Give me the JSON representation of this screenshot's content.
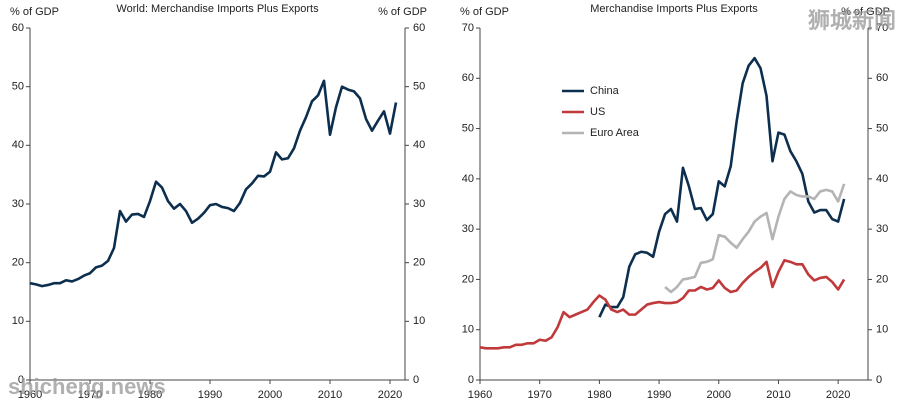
{
  "chart_data": [
    {
      "type": "line",
      "title": "World: Merchandise Imports Plus Exports",
      "ylabel": "% of GDP",
      "y2label": "% of GDP",
      "x": [
        1960,
        1961,
        1962,
        1963,
        1964,
        1965,
        1966,
        1967,
        1968,
        1969,
        1970,
        1971,
        1972,
        1973,
        1974,
        1975,
        1976,
        1977,
        1978,
        1979,
        1980,
        1981,
        1982,
        1983,
        1984,
        1985,
        1986,
        1987,
        1988,
        1989,
        1990,
        1991,
        1992,
        1993,
        1994,
        1995,
        1996,
        1997,
        1998,
        1999,
        2000,
        2001,
        2002,
        2003,
        2004,
        2005,
        2006,
        2007,
        2008,
        2009,
        2010,
        2011,
        2012,
        2013,
        2014,
        2015,
        2016,
        2017,
        2018,
        2019,
        2020,
        2021
      ],
      "values": [
        16.5,
        16.3,
        16.0,
        16.2,
        16.5,
        16.5,
        17.0,
        16.8,
        17.2,
        17.8,
        18.2,
        19.2,
        19.5,
        20.3,
        22.5,
        28.8,
        27.0,
        28.2,
        28.3,
        27.8,
        30.5,
        33.8,
        32.8,
        30.5,
        29.2,
        30.0,
        28.8,
        26.8,
        27.5,
        28.5,
        29.8,
        30.0,
        29.5,
        29.3,
        28.8,
        30.2,
        32.5,
        33.5,
        34.8,
        34.7,
        35.5,
        38.8,
        37.6,
        37.8,
        39.5,
        42.5,
        44.8,
        47.5,
        48.5,
        51.0,
        41.8,
        46.5,
        50.0,
        49.5,
        49.2,
        48.0,
        44.5,
        42.5,
        44.2,
        45.8,
        42.0,
        47.3
      ],
      "color": "#0d2f4f",
      "xlim": [
        1960,
        2022.5
      ],
      "xticks": [
        1960,
        1970,
        1980,
        1990,
        2000,
        2010,
        2020
      ],
      "ylim": [
        0,
        60
      ],
      "yticks": [
        0,
        10,
        20,
        30,
        40,
        50,
        60
      ],
      "y2lim": [
        0,
        60
      ],
      "y2ticks": [
        0,
        10,
        20,
        30,
        40,
        50,
        60
      ]
    },
    {
      "type": "line",
      "title": "Merchandise Imports Plus Exports",
      "ylabel": "% of GDP",
      "y2label": "% of GDP",
      "legend": "upper left",
      "x": [
        1960,
        1961,
        1962,
        1963,
        1964,
        1965,
        1966,
        1967,
        1968,
        1969,
        1970,
        1971,
        1972,
        1973,
        1974,
        1975,
        1976,
        1977,
        1978,
        1979,
        1980,
        1981,
        1982,
        1983,
        1984,
        1985,
        1986,
        1987,
        1988,
        1989,
        1990,
        1991,
        1992,
        1993,
        1994,
        1995,
        1996,
        1997,
        1998,
        1999,
        2000,
        2001,
        2002,
        2003,
        2004,
        2005,
        2006,
        2007,
        2008,
        2009,
        2010,
        2011,
        2012,
        2013,
        2014,
        2015,
        2016,
        2017,
        2018,
        2019,
        2020,
        2021
      ],
      "series": [
        {
          "name": "China",
          "color": "#0d2f4f",
          "values": [
            null,
            null,
            null,
            null,
            null,
            null,
            null,
            null,
            null,
            null,
            null,
            null,
            null,
            null,
            null,
            null,
            null,
            null,
            null,
            null,
            12.5,
            15,
            14.5,
            14.5,
            16.5,
            22.5,
            25,
            25.5,
            25.3,
            24.5,
            29.5,
            33,
            34,
            31.5,
            42.2,
            38.5,
            34,
            34.2,
            31.8,
            33,
            39.5,
            38.5,
            42.5,
            51.5,
            59,
            62.5,
            64,
            62,
            56.5,
            43.5,
            49.2,
            48.8,
            45.5,
            43.5,
            41,
            35.5,
            33.3,
            33.8,
            33.8,
            32,
            31.5,
            36
          ]
        },
        {
          "name": "US",
          "color": "#c0393b",
          "values": [
            6.5,
            6.3,
            6.3,
            6.3,
            6.5,
            6.5,
            7,
            7,
            7.3,
            7.3,
            8,
            7.8,
            8.5,
            10.5,
            13.5,
            12.5,
            13,
            13.5,
            14,
            15.5,
            16.8,
            16,
            14,
            13.5,
            14,
            13,
            13,
            14,
            15,
            15.3,
            15.5,
            15.3,
            15.3,
            15.5,
            16.3,
            17.8,
            17.8,
            18.5,
            18,
            18.3,
            19.8,
            18.3,
            17.5,
            17.8,
            19.3,
            20.5,
            21.5,
            22.3,
            23.5,
            18.5,
            21.5,
            23.8,
            23.5,
            23,
            23,
            21,
            19.8,
            20.3,
            20.5,
            19.5,
            18,
            20
          ]
        },
        {
          "name": "Euro Area",
          "color": "#b4b4b4",
          "values": [
            null,
            null,
            null,
            null,
            null,
            null,
            null,
            null,
            null,
            null,
            null,
            null,
            null,
            null,
            null,
            null,
            null,
            null,
            null,
            null,
            null,
            null,
            null,
            null,
            null,
            null,
            null,
            null,
            null,
            null,
            null,
            18.5,
            17.5,
            18.5,
            20,
            20.2,
            20.5,
            23.3,
            23.5,
            24,
            28.8,
            28.5,
            27.3,
            26.3,
            28,
            29.5,
            31.5,
            32.5,
            33.2,
            28,
            32.5,
            36,
            37.5,
            36.8,
            36.5,
            36.5,
            36,
            37.5,
            37.8,
            37.5,
            35.5,
            39
          ]
        }
      ],
      "xlim": [
        1960,
        2025
      ],
      "xticks": [
        1960,
        1970,
        1980,
        1990,
        2000,
        2010,
        2020
      ],
      "ylim": [
        0,
        70
      ],
      "yticks": [
        0,
        10,
        20,
        30,
        40,
        50,
        60,
        70
      ],
      "y2lim": [
        0,
        70
      ],
      "y2ticks": [
        0,
        10,
        20,
        30,
        40,
        50,
        60,
        70
      ]
    }
  ],
  "watermarks": [
    "shicheng.news",
    "狮城新闻"
  ]
}
